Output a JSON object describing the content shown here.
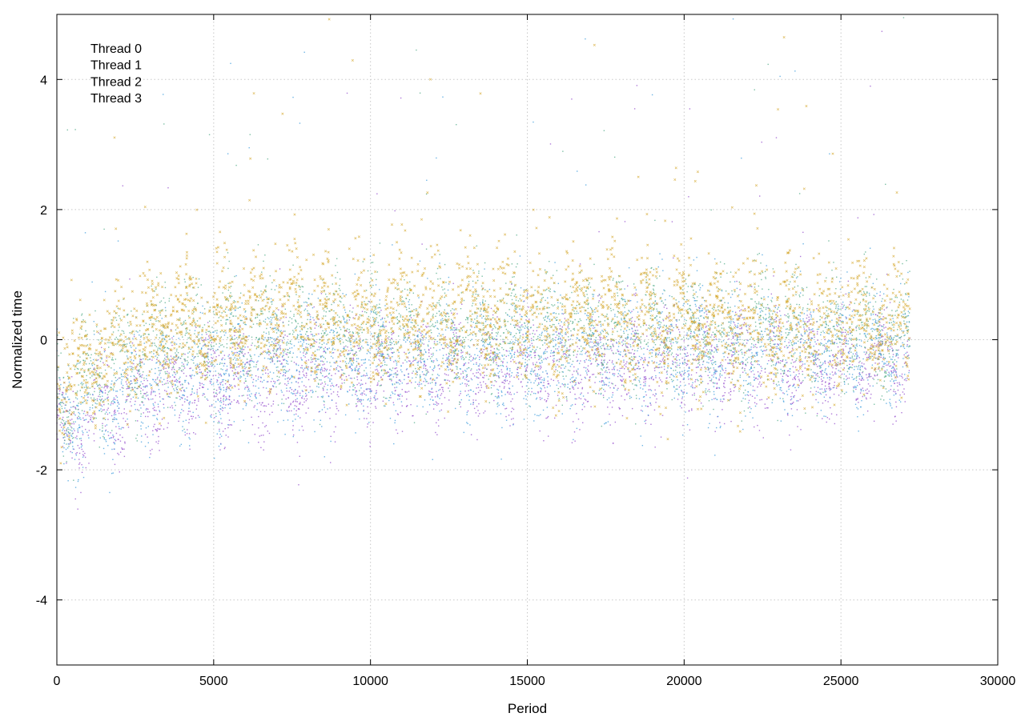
{
  "chart_data": {
    "type": "scatter",
    "title": "",
    "xlabel": "Period",
    "ylabel": "Normalized time",
    "xlim": [
      0,
      30000
    ],
    "ylim": [
      -5,
      5
    ],
    "x_ticks": [
      0,
      5000,
      10000,
      15000,
      20000,
      25000,
      30000
    ],
    "y_ticks": [
      -4,
      -2,
      0,
      2,
      4
    ],
    "x_tick_labels": [
      "0",
      "5000",
      "10000",
      "15000",
      "20000",
      "25000",
      "30000"
    ],
    "y_tick_labels": [
      "-4",
      "-2",
      "0",
      "2",
      "4"
    ],
    "grid": true,
    "legend_position": "top-left",
    "x_range_of_data": [
      0,
      27200
    ],
    "series": [
      {
        "name": "Thread 0",
        "color": "#9b59d0",
        "marker": "dot",
        "trend": [
          [
            0,
            -0.9
          ],
          [
            200,
            -1.6
          ],
          [
            1000,
            -1.2
          ],
          [
            2500,
            -0.9
          ],
          [
            5000,
            -0.65
          ],
          [
            10000,
            -0.5
          ],
          [
            15000,
            -0.45
          ],
          [
            20000,
            -0.35
          ],
          [
            27200,
            -0.35
          ]
        ],
        "spread": 0.35
      },
      {
        "name": "Thread 1",
        "color": "#4aa3df",
        "marker": "dot",
        "trend": [
          [
            0,
            -0.8
          ],
          [
            200,
            -1.3
          ],
          [
            1000,
            -1.0
          ],
          [
            2500,
            -0.7
          ],
          [
            5000,
            -0.45
          ],
          [
            10000,
            -0.3
          ],
          [
            15000,
            -0.25
          ],
          [
            20000,
            -0.15
          ],
          [
            27200,
            -0.15
          ]
        ],
        "spread": 0.4
      },
      {
        "name": "Thread 2",
        "color": "#5cb08f",
        "marker": "dot",
        "trend": [
          [
            0,
            -0.6
          ],
          [
            200,
            -1.0
          ],
          [
            1000,
            -0.6
          ],
          [
            2500,
            -0.2
          ],
          [
            5000,
            0.05
          ],
          [
            10000,
            0.15
          ],
          [
            15000,
            0.15
          ],
          [
            20000,
            0.1
          ],
          [
            27200,
            0.05
          ]
        ],
        "spread": 0.4
      },
      {
        "name": "Thread 3",
        "color": "#d4a72c",
        "marker": "cross",
        "trend": [
          [
            0,
            -0.5
          ],
          [
            200,
            -0.8
          ],
          [
            1000,
            -0.4
          ],
          [
            2500,
            0.0
          ],
          [
            5000,
            0.3
          ],
          [
            10000,
            0.35
          ],
          [
            15000,
            0.35
          ],
          [
            20000,
            0.25
          ],
          [
            27200,
            0.2
          ]
        ],
        "spread": 0.45
      }
    ]
  }
}
